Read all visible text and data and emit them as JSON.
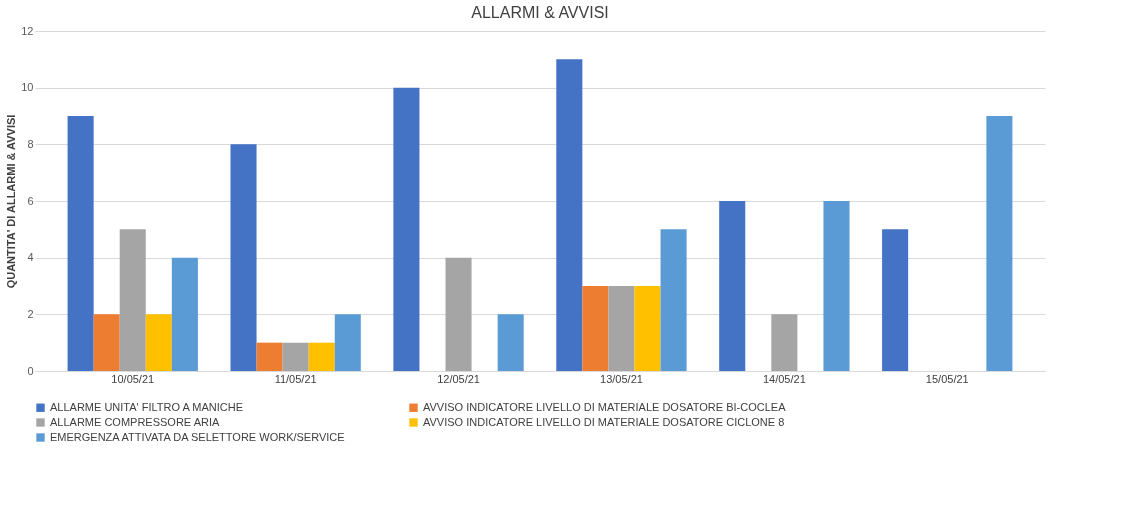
{
  "chart_data": {
    "type": "bar",
    "title": "ALLARMI & AVVISI",
    "ylabel": "QUANTITA' DI ALLARMI & AVVISI",
    "categories": [
      "10/05/21",
      "11/05/21",
      "12/05/21",
      "13/05/21",
      "14/05/21",
      "15/05/21"
    ],
    "series": [
      {
        "name": "ALLARME UNITA' FILTRO A MANICHE",
        "color": "#4472c4",
        "values": [
          9,
          8,
          10,
          11,
          6,
          5
        ]
      },
      {
        "name": "AVVISO INDICATORE LIVELLO DI MATERIALE DOSATORE BI-COCLEA",
        "color": "#ed7d31",
        "values": [
          2,
          1,
          0,
          3,
          0,
          0
        ]
      },
      {
        "name": "ALLARME COMPRESSORE ARIA",
        "color": "#a5a5a5",
        "values": [
          5,
          1,
          4,
          3,
          2,
          0
        ]
      },
      {
        "name": "AVVISO INDICATORE LIVELLO DI MATERIALE DOSATORE CICLONE 8",
        "color": "#ffc000",
        "values": [
          2,
          1,
          0,
          3,
          0,
          0
        ]
      },
      {
        "name": "EMERGENZA ATTIVATA DA SELETTORE WORK/SERVICE",
        "color": "#5b9bd5",
        "values": [
          4,
          2,
          2,
          5,
          6,
          9
        ]
      }
    ],
    "ylim": [
      0,
      12
    ],
    "yticks": [
      0,
      2,
      4,
      6,
      8,
      10,
      12
    ],
    "grid": "y",
    "legend": "bottom"
  }
}
